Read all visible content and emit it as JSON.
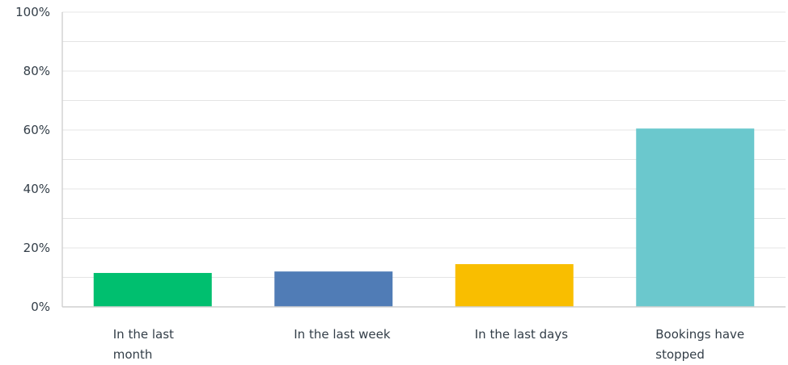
{
  "chart_data": {
    "type": "bar",
    "title": "",
    "xlabel": "",
    "ylabel": "",
    "categories": [
      [
        "In the last",
        "month"
      ],
      [
        "In the last week"
      ],
      [
        "In the last days"
      ],
      [
        "Bookings have",
        "stopped"
      ]
    ],
    "values": [
      11.5,
      12,
      14.5,
      60.5
    ],
    "ylim": [
      0,
      100
    ],
    "yticks": [
      "0%",
      "20%",
      "40%",
      "60%",
      "80%",
      "100%"
    ],
    "ytick_values": [
      0,
      20,
      40,
      60,
      80,
      100
    ],
    "minor_gridlines": [
      10,
      30,
      50,
      70,
      90
    ],
    "bar_colors": [
      "#00bf6f",
      "#507cb6",
      "#f9be00",
      "#6bc8cd"
    ],
    "grid": true,
    "legend": "none"
  }
}
